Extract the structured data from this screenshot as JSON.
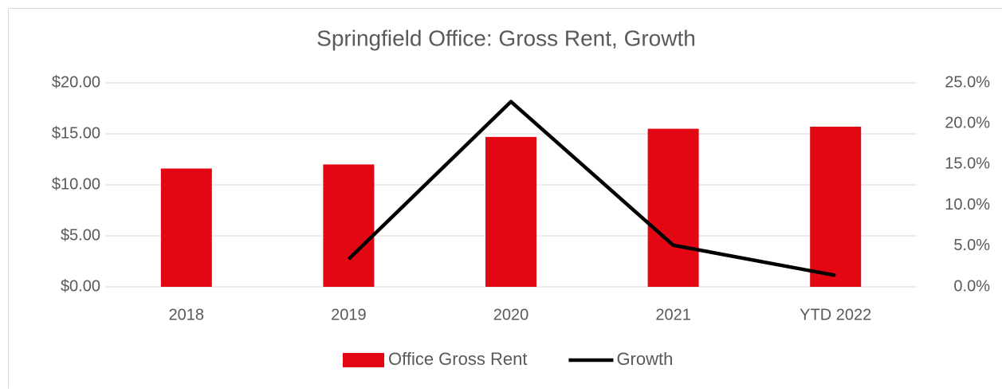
{
  "chart_data": {
    "type": "bar-line",
    "title": "Springfield Office: Gross Rent, Growth",
    "categories": [
      "2018",
      "2019",
      "2020",
      "2021",
      "YTD 2022"
    ],
    "series": [
      {
        "name": "Office Gross Rent",
        "type": "bar",
        "color": "#e30613",
        "values": [
          11.6,
          12.0,
          14.7,
          15.5,
          15.7
        ]
      },
      {
        "name": "Growth",
        "type": "line",
        "axis": "y2",
        "color": "#000000",
        "values": [
          null,
          3.4,
          22.7,
          5.1,
          1.4
        ]
      }
    ],
    "ylim": [
      0,
      20
    ],
    "yticks": [
      {
        "value": 0,
        "label": "$0.00"
      },
      {
        "value": 5,
        "label": "$5.00"
      },
      {
        "value": 10,
        "label": "$10.00"
      },
      {
        "value": 15,
        "label": "$15.00"
      },
      {
        "value": 20,
        "label": "$20.00"
      }
    ],
    "y2lim": [
      0,
      25
    ],
    "y2ticks": [
      {
        "value": 0,
        "label": "0.0%"
      },
      {
        "value": 5,
        "label": "5.0%"
      },
      {
        "value": 10,
        "label": "10.0%"
      },
      {
        "value": 15,
        "label": "15.0%"
      },
      {
        "value": 20,
        "label": "20.0%"
      },
      {
        "value": 25,
        "label": "25.0%"
      }
    ],
    "grid": true,
    "legend": "bottom"
  }
}
